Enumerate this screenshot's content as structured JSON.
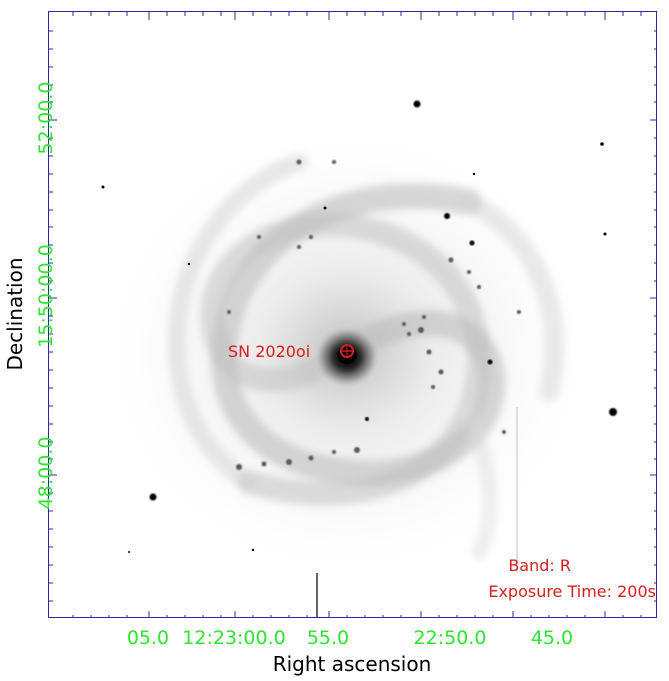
{
  "annotations": {
    "supernova_label": "SN 2020oi",
    "band_label": "Band: R",
    "exposure_label": "Exposure Time: 200s",
    "marker_color": "#d42020"
  },
  "axes": {
    "x_label": "Right ascension",
    "y_label": "Declination",
    "ra_ticks": [
      "05.0",
      "12:23:00.0",
      "55.0",
      "22:50.0",
      "45.0"
    ],
    "dec_ticks": [
      "52:00.0",
      "15:50:00.0",
      "48:00.0"
    ],
    "tick_label_color": "#2ee62e",
    "frame_color": "#2a2aa0"
  },
  "image": {
    "subject": "spiral-galaxy",
    "colormap": "inverted-grayscale"
  }
}
